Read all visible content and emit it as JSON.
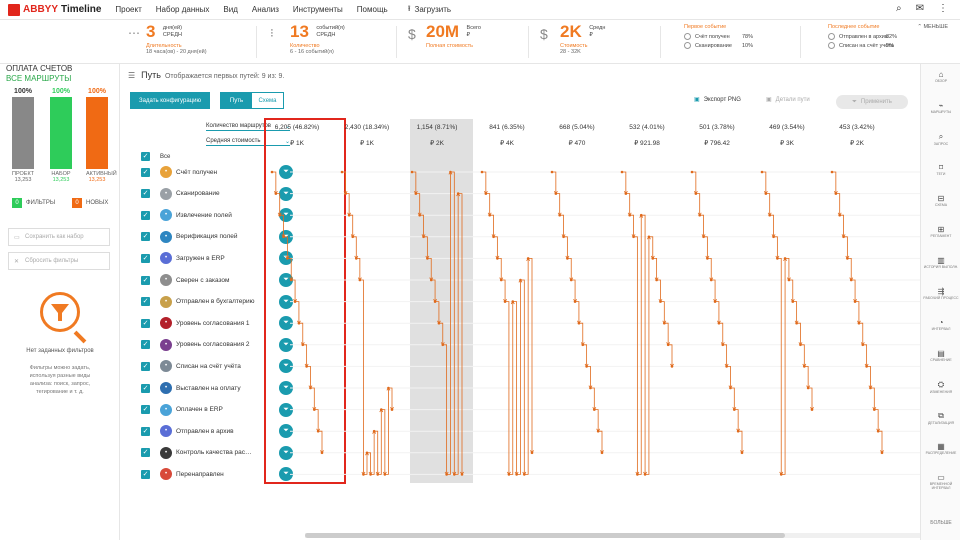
{
  "app": {
    "brand": "ABBYY",
    "product": "Timeline"
  },
  "menu": [
    "Проект",
    "Набор данных",
    "Вид",
    "Анализ",
    "Инструменты",
    "Помощь"
  ],
  "upload": "Загрузить",
  "stats": {
    "duration": {
      "value": "3",
      "unit1": "дня(ей)",
      "unit2": "СРЕДН",
      "label": "Длительность",
      "sub": "18 часа(ов) - 20 дня(ей)"
    },
    "count": {
      "value": "13",
      "unit1": "событий(я)",
      "unit2": "СРЕДН",
      "label": "Количество",
      "sub": "6 - 16 событий(я)"
    },
    "total": {
      "value": "20M",
      "unit1": "Всего",
      "unit2": "₽",
      "label": "Полная стоимость",
      "sub": ""
    },
    "cost": {
      "value": "2K",
      "unit1": "Средн",
      "unit2": "₽",
      "label": "Стоимость",
      "sub": "28 - 32K"
    }
  },
  "first_event": {
    "header": "Первое событие",
    "rows": [
      {
        "name": "Счёт получен",
        "pct": "78%"
      },
      {
        "name": "Сканирование",
        "pct": "10%"
      }
    ]
  },
  "last_event": {
    "header": "Последнее событие",
    "rows": [
      {
        "name": "Отправлен в архив",
        "pct": "82%"
      },
      {
        "name": "Списан на счёт учёта",
        "pct": "9%"
      }
    ]
  },
  "less": "МЕНЬШЕ",
  "left": {
    "title": "ОПЛАТА СЧЕТОВ",
    "subtitle": "ВСЕ МАРШРУТЫ",
    "bars": [
      {
        "pct": "100%",
        "name": "ПРОЕКТ",
        "value": "13,253",
        "color": "#888888",
        "fill": 1.0
      },
      {
        "pct": "100%",
        "name": "НАБОР",
        "value": "13,253",
        "color": "#2ecc5a",
        "fill": 1.0
      },
      {
        "pct": "100%",
        "name": "АКТИВНЫЙ",
        "value": "13,253",
        "color": "#f06a14",
        "fill": 1.0
      }
    ],
    "filters_count": "0",
    "filters_label": "ФИЛЬТРЫ",
    "new_count": "0",
    "new_label": "НОВЫХ",
    "save_set": "Сохранить как набор",
    "reset": "Сбросить фильтры",
    "no_filters": "Нет заданных фильтров",
    "desc": "Фильтры можно задать, используя разные виды анализа: поиск, запрос, тегирование и т. д."
  },
  "main": {
    "title": "Путь",
    "subtitle": "Отображается первых путей: 9 из: 9.",
    "config_btn": "Задать конфигурацию",
    "tab_path": "Путь",
    "tab_scheme": "Схема",
    "export": "Экспорт PNG",
    "details": "Детали пути",
    "apply": "Применить",
    "sel_routes": "Количество маршрутов",
    "sel_cost": "Средняя стоимость",
    "all": "Все"
  },
  "steps": [
    {
      "label": "Счёт получен",
      "color": "#e8a23a"
    },
    {
      "label": "Сканирование",
      "color": "#9aa0a6"
    },
    {
      "label": "Извлечение полей",
      "color": "#4aa3d8"
    },
    {
      "label": "Верификация полей",
      "color": "#2e86c1"
    },
    {
      "label": "Загружен в ERP",
      "color": "#5a6ed6"
    },
    {
      "label": "Сверен с заказом",
      "color": "#8e8e8e"
    },
    {
      "label": "Отправлен в бухгалтерию",
      "color": "#c8a04a"
    },
    {
      "label": "Уровень согласования 1",
      "color": "#b3202a"
    },
    {
      "label": "Уровень согласования 2",
      "color": "#7a3f8f"
    },
    {
      "label": "Списан на счёт учёта",
      "color": "#7d8a96"
    },
    {
      "label": "Выставлен на оплату",
      "color": "#2e6fb0"
    },
    {
      "label": "Оплачен в ERP",
      "color": "#4aa3d8"
    },
    {
      "label": "Отправлен в архив",
      "color": "#5a6ed6"
    },
    {
      "label": "Контроль качества рас…",
      "color": "#3a3a3a"
    },
    {
      "label": "Перенаправлен",
      "color": "#d84a3a"
    }
  ],
  "paths": [
    {
      "count": "6,205 (46.82%)",
      "cost": "₽ 1K",
      "seq": [
        0,
        1,
        2,
        3,
        4,
        5,
        6,
        7,
        8,
        9,
        10,
        11,
        12,
        13
      ]
    },
    {
      "count": "2,430 (18.34%)",
      "cost": "₽ 1K",
      "seq": [
        0,
        1,
        2,
        3,
        4,
        5,
        14,
        13,
        14,
        12,
        14,
        11,
        14,
        10,
        11
      ]
    },
    {
      "count": "1,154 (8.71%)",
      "cost": "₽ 2K",
      "seq": [
        0,
        1,
        2,
        3,
        4,
        5,
        6,
        7,
        8,
        14,
        0,
        14,
        1,
        14
      ]
    },
    {
      "count": "841 (6.35%)",
      "cost": "₽ 4K",
      "seq": [
        0,
        1,
        2,
        3,
        4,
        5,
        6,
        14,
        6,
        14,
        5,
        14,
        4,
        13
      ]
    },
    {
      "count": "668 (5.04%)",
      "cost": "₽ 470",
      "seq": [
        0,
        1,
        2,
        3,
        4,
        5,
        6,
        7,
        8,
        9,
        10,
        11,
        12,
        13
      ]
    },
    {
      "count": "532 (4.01%)",
      "cost": "₽ 921.98",
      "seq": [
        0,
        1,
        2,
        3,
        14,
        2,
        14,
        3,
        4,
        5,
        6,
        7,
        8,
        9
      ]
    },
    {
      "count": "501 (3.78%)",
      "cost": "₽ 796.42",
      "seq": [
        0,
        1,
        2,
        3,
        4,
        5,
        6,
        7,
        8,
        9,
        10,
        11,
        12,
        13
      ]
    },
    {
      "count": "469 (3.54%)",
      "cost": "₽ 3K",
      "seq": [
        0,
        1,
        2,
        3,
        4,
        14,
        4,
        5,
        6,
        7,
        8,
        9,
        10,
        11
      ]
    },
    {
      "count": "453 (3.42%)",
      "cost": "₽ 2K",
      "seq": [
        0,
        1,
        2,
        3,
        4,
        5,
        6,
        7,
        8,
        9,
        10,
        11,
        12,
        13
      ]
    }
  ],
  "sidebar": [
    "ОБЗОР",
    "МАРШРУТЫ",
    "ЗАПРОС",
    "ТЕГИ",
    "СХЕМА",
    "РЕГЛАМЕНТ",
    "ИСТОРИЯ ВЫПОЛН.",
    "РАБОЧИЙ ПРОЦЕСС",
    "ИНТЕРВАЛ",
    "СРАВНЕНИЕ",
    "ИЗМЕНЕНИЯ",
    "ДЕТАЛИЗАЦИЯ",
    "РАСПРЕДЕЛЕНИЕ",
    "ВРЕМЕННОЙ ИНТЕРВАЛ"
  ],
  "sidebar_more": "БОЛЬШЕ",
  "colors": {
    "accent": "#1a9bae",
    "orange": "#f07a22",
    "brand": "#e1261c",
    "path": "#e06a1c",
    "selected_border": "#e1261c",
    "highlight": "#e0e0e0"
  }
}
